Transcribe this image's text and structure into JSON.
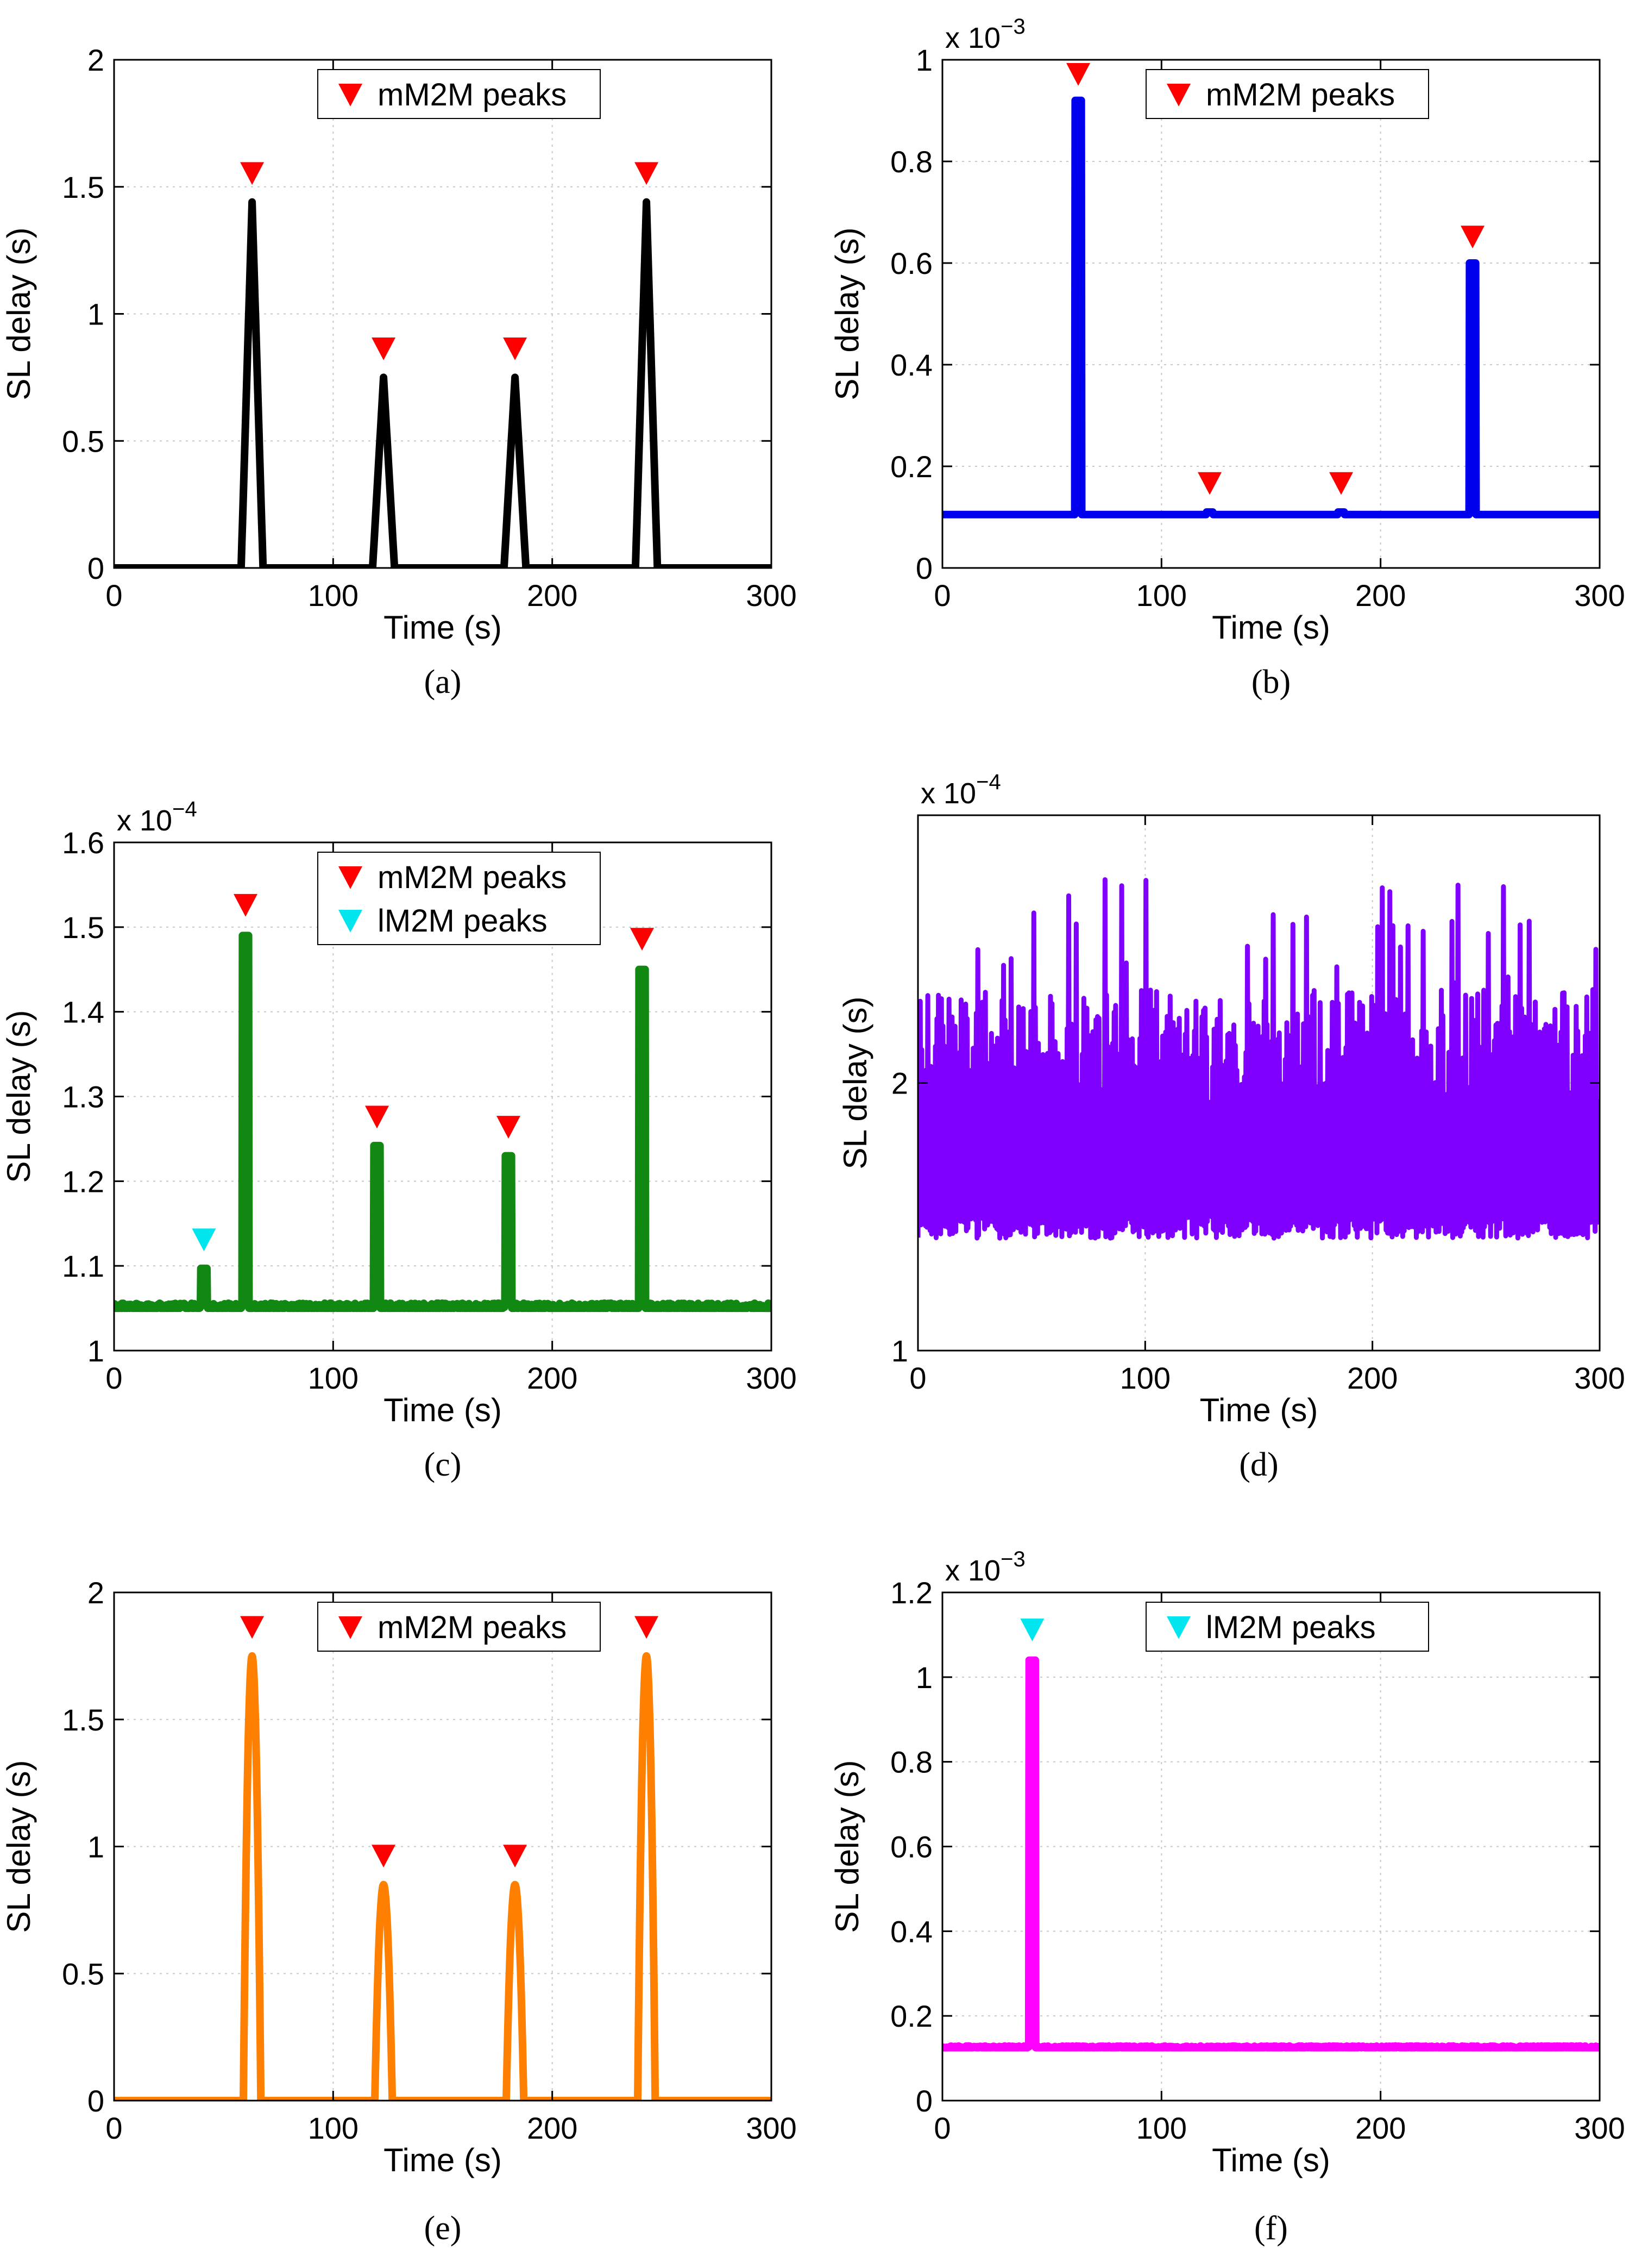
{
  "chart_data": [
    {
      "id": "a",
      "caption": "(a)",
      "type": "line",
      "color": "#000000",
      "style": "triangle",
      "baseline": 0,
      "noise": 0,
      "peak_width": 5,
      "xlabel": "Time (s)",
      "ylabel": "SL delay (s)",
      "xlim": [
        0,
        300
      ],
      "ylim": [
        0,
        2
      ],
      "xticks": [
        0,
        100,
        200,
        300
      ],
      "xtick_labels": [
        "0",
        "100",
        "200",
        "300"
      ],
      "yticks": [
        0,
        0.5,
        1,
        1.5,
        2
      ],
      "ytick_labels": [
        "0",
        "0.5",
        "1",
        "1.5",
        "2"
      ],
      "exponent_base": "",
      "exponent_power": "",
      "spikes": [
        {
          "t": 63,
          "v": 1.44,
          "kind": "mM2M"
        },
        {
          "t": 123,
          "v": 0.75,
          "kind": "mM2M"
        },
        {
          "t": 183,
          "v": 0.75,
          "kind": "mM2M"
        },
        {
          "t": 243,
          "v": 1.44,
          "kind": "mM2M"
        }
      ],
      "markers": [
        {
          "x": 63,
          "y": 1.55,
          "type": "mM2M"
        },
        {
          "x": 123,
          "y": 0.86,
          "type": "mM2M"
        },
        {
          "x": 183,
          "y": 0.86,
          "type": "mM2M"
        },
        {
          "x": 243,
          "y": 1.55,
          "type": "mM2M"
        }
      ],
      "legend": [
        {
          "label": "mM2M peaks",
          "color": "#ff0000"
        }
      ]
    },
    {
      "id": "b",
      "caption": "(b)",
      "type": "line",
      "color": "#0000ee",
      "style": "spike",
      "baseline": 0.105,
      "noise": 0,
      "peak_width": 1.5,
      "xlabel": "Time (s)",
      "ylabel": "SL delay (s)",
      "xlim": [
        0,
        300
      ],
      "ylim": [
        0,
        1
      ],
      "xticks": [
        0,
        100,
        200,
        300
      ],
      "xtick_labels": [
        "0",
        "100",
        "200",
        "300"
      ],
      "yticks": [
        0,
        0.2,
        0.4,
        0.6,
        0.8,
        1
      ],
      "ytick_labels": [
        "0",
        "0.2",
        "0.4",
        "0.6",
        "0.8",
        "1"
      ],
      "exponent_base": "x 10",
      "exponent_power": "−3",
      "spikes": [
        {
          "t": 62,
          "v": 0.92,
          "kind": "mM2M"
        },
        {
          "t": 122,
          "v": 0.11,
          "kind": "mM2M"
        },
        {
          "t": 182,
          "v": 0.11,
          "kind": "mM2M"
        },
        {
          "t": 242,
          "v": 0.6,
          "kind": "mM2M"
        }
      ],
      "markers": [
        {
          "x": 62,
          "y": 0.97,
          "type": "mM2M"
        },
        {
          "x": 122,
          "y": 0.165,
          "type": "mM2M"
        },
        {
          "x": 182,
          "y": 0.165,
          "type": "mM2M"
        },
        {
          "x": 242,
          "y": 0.65,
          "type": "mM2M"
        }
      ],
      "legend": [
        {
          "label": "mM2M peaks",
          "color": "#ff0000"
        }
      ]
    },
    {
      "id": "c",
      "caption": "(c)",
      "type": "line",
      "color": "#118811",
      "style": "spike",
      "baseline": 1.05,
      "noise": 0.006,
      "peak_width": 1.5,
      "xlabel": "Time (s)",
      "ylabel": "SL delay (s)",
      "xlim": [
        0,
        300
      ],
      "ylim": [
        1,
        1.6
      ],
      "xticks": [
        0,
        100,
        200,
        300
      ],
      "xtick_labels": [
        "0",
        "100",
        "200",
        "300"
      ],
      "yticks": [
        1,
        1.1,
        1.2,
        1.3,
        1.4,
        1.5,
        1.6
      ],
      "ytick_labels": [
        "1",
        "1.1",
        "1.2",
        "1.3",
        "1.4",
        "1.5",
        "1.6"
      ],
      "exponent_base": "x 10",
      "exponent_power": "−4",
      "spikes": [
        {
          "t": 41,
          "v": 1.097,
          "kind": "lM2M"
        },
        {
          "t": 60,
          "v": 1.49,
          "kind": "mM2M"
        },
        {
          "t": 120,
          "v": 1.242,
          "kind": "mM2M"
        },
        {
          "t": 180,
          "v": 1.23,
          "kind": "mM2M"
        },
        {
          "t": 241,
          "v": 1.45,
          "kind": "mM2M"
        }
      ],
      "markers": [
        {
          "x": 41,
          "y": 1.13,
          "type": "lM2M"
        },
        {
          "x": 60,
          "y": 1.525,
          "type": "mM2M"
        },
        {
          "x": 120,
          "y": 1.275,
          "type": "mM2M"
        },
        {
          "x": 180,
          "y": 1.263,
          "type": "mM2M"
        },
        {
          "x": 241,
          "y": 1.485,
          "type": "mM2M"
        }
      ],
      "legend": [
        {
          "label": "mM2M peaks",
          "color": "#ff0000"
        },
        {
          "label": "lM2M peaks",
          "color": "#00e5ee"
        }
      ]
    },
    {
      "id": "d",
      "caption": "(d)",
      "type": "line",
      "color": "#7f00ff",
      "style": "noise",
      "baseline": 1.7,
      "noise": 0,
      "peak_width": 0,
      "xlabel": "Time (s)",
      "ylabel": "SL delay (s)",
      "xlim": [
        0,
        300
      ],
      "ylim": [
        1,
        3
      ],
      "xticks": [
        0,
        100,
        200,
        300
      ],
      "xtick_labels": [
        "0",
        "100",
        "200",
        "300"
      ],
      "yticks": [
        1,
        2
      ],
      "ytick_labels": [
        "1",
        "2"
      ],
      "exponent_base": "x 10",
      "exponent_power": "−4",
      "band": {
        "low": [
          1.42,
          1.52
        ],
        "high": [
          1.85,
          2.35
        ],
        "peak_max": 2.77
      },
      "spikes": [],
      "markers": [],
      "legend": []
    },
    {
      "id": "e",
      "caption": "(e)",
      "type": "line",
      "color": "#ff8000",
      "style": "gauss",
      "baseline": 0,
      "noise": 0,
      "peak_width": 4,
      "xlabel": "Time (s)",
      "ylabel": "SL delay (s)",
      "xlim": [
        0,
        300
      ],
      "ylim": [
        0,
        2
      ],
      "xticks": [
        0,
        100,
        200,
        300
      ],
      "xtick_labels": [
        "0",
        "100",
        "200",
        "300"
      ],
      "yticks": [
        0,
        0.5,
        1,
        1.5,
        2
      ],
      "ytick_labels": [
        "0",
        "0.5",
        "1",
        "1.5",
        "2"
      ],
      "exponent_base": "",
      "exponent_power": "",
      "spikes": [
        {
          "t": 63,
          "v": 1.75,
          "kind": "mM2M"
        },
        {
          "t": 123,
          "v": 0.85,
          "kind": "mM2M"
        },
        {
          "t": 183,
          "v": 0.85,
          "kind": "mM2M"
        },
        {
          "t": 243,
          "v": 1.75,
          "kind": "mM2M"
        }
      ],
      "markers": [
        {
          "x": 63,
          "y": 1.86,
          "type": "mM2M"
        },
        {
          "x": 123,
          "y": 0.96,
          "type": "mM2M"
        },
        {
          "x": 183,
          "y": 0.96,
          "type": "mM2M"
        },
        {
          "x": 243,
          "y": 1.86,
          "type": "mM2M"
        }
      ],
      "legend": [
        {
          "label": "mM2M peaks",
          "color": "#ff0000"
        }
      ]
    },
    {
      "id": "f",
      "caption": "(f)",
      "type": "line",
      "color": "#ff00ff",
      "style": "spike",
      "baseline": 0.125,
      "noise": 0.004,
      "peak_width": 1.5,
      "xlabel": "Time (s)",
      "ylabel": "SL delay (s)",
      "xlim": [
        0,
        300
      ],
      "ylim": [
        0,
        1.2
      ],
      "xticks": [
        0,
        100,
        200,
        300
      ],
      "xtick_labels": [
        "0",
        "100",
        "200",
        "300"
      ],
      "yticks": [
        0,
        0.2,
        0.4,
        0.6,
        0.8,
        1,
        1.2
      ],
      "ytick_labels": [
        "0",
        "0.2",
        "0.4",
        "0.6",
        "0.8",
        "1",
        "1.2"
      ],
      "exponent_base": "x 10",
      "exponent_power": "−3",
      "spikes": [
        {
          "t": 41,
          "v": 1.04,
          "kind": "lM2M"
        }
      ],
      "markers": [
        {
          "x": 41,
          "y": 1.11,
          "type": "lM2M"
        }
      ],
      "legend": [
        {
          "label": "lM2M peaks",
          "color": "#00e5ee"
        }
      ]
    }
  ]
}
